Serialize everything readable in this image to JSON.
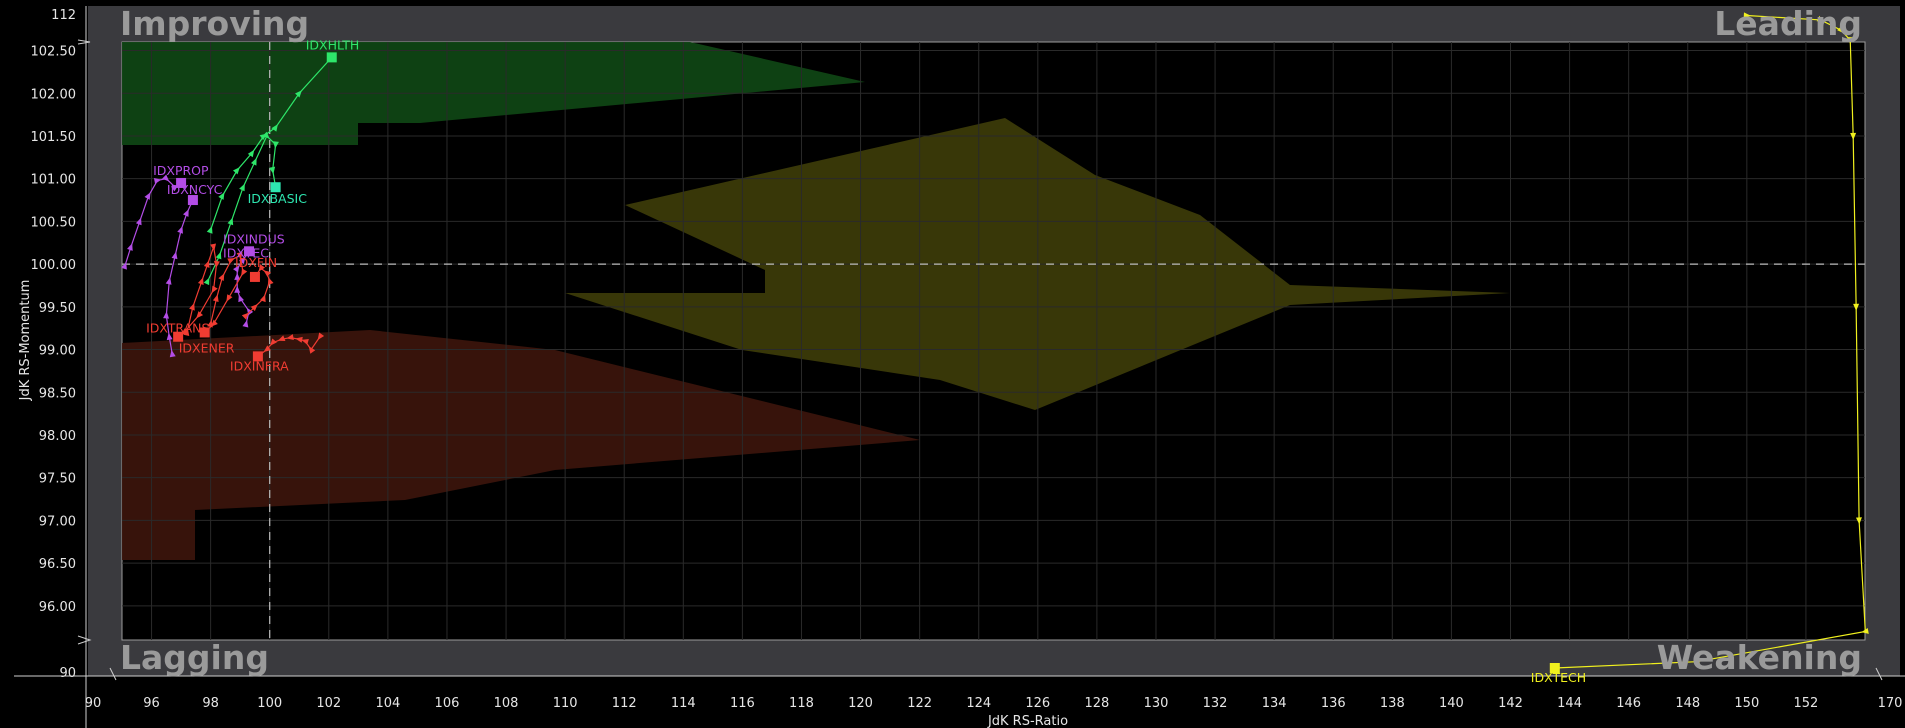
{
  "chart_data": {
    "type": "scatter",
    "title": "",
    "xlabel": "JdK RS-Ratio",
    "ylabel": "JdK RS-Momentum",
    "x_ticks": [
      "90",
      "96",
      "98",
      "100",
      "102",
      "104",
      "106",
      "108",
      "110",
      "112",
      "114",
      "116",
      "118",
      "120",
      "122",
      "124",
      "126",
      "128",
      "130",
      "132",
      "134",
      "136",
      "138",
      "140",
      "142",
      "144",
      "146",
      "148",
      "150",
      "152",
      "170"
    ],
    "y_ticks": [
      "112",
      "102.50",
      "102.00",
      "101.50",
      "101.00",
      "100.50",
      "100.00",
      "99.50",
      "99.00",
      "98.50",
      "98.00",
      "97.50",
      "97.00",
      "96.50",
      "96.00",
      "90"
    ],
    "xlim_inner": [
      95,
      154
    ],
    "ylim_inner": [
      95.6,
      102.6
    ],
    "x_break_labels": {
      "low": 90,
      "high": 170
    },
    "y_break_labels": {
      "low": 90,
      "high": 112
    },
    "center": [
      100,
      100
    ],
    "grid": true,
    "quadrants": {
      "top_left": "Improving",
      "top_right": "Leading",
      "bottom_left": "Lagging",
      "bottom_right": "Weakening"
    },
    "series": [
      {
        "name": "IDXHLTH",
        "color": "#2ee66a",
        "marker_color": "#2ee66a",
        "label_color": "#2ee66a",
        "x": [
          98.0,
          98.4,
          98.9,
          99.4,
          99.8,
          100.2,
          101.0,
          102.1
        ],
        "y": [
          100.4,
          100.8,
          101.1,
          101.3,
          101.5,
          101.6,
          102.0,
          102.42
        ]
      },
      {
        "name": "IDXBASIC",
        "color": "#2ee66a",
        "marker_color": "#2ee6b0",
        "label_color": "#2ee6b0",
        "x": [
          97.9,
          98.3,
          98.7,
          99.1,
          99.5,
          99.9,
          100.2,
          100.1,
          100.2
        ],
        "y": [
          99.8,
          100.1,
          100.5,
          100.9,
          101.2,
          101.5,
          101.4,
          101.1,
          100.9
        ]
      },
      {
        "name": "IDXPROP",
        "color": "#b34de6",
        "marker_color": "#b34de6",
        "label_color": "#b34de6",
        "x": [
          95.1,
          95.3,
          95.6,
          95.9,
          96.2,
          96.5,
          96.8,
          97.0
        ],
        "y": [
          99.98,
          100.2,
          100.5,
          100.8,
          100.98,
          101.0,
          100.9,
          100.95
        ]
      },
      {
        "name": "IDXNCYC",
        "color": "#b34de6",
        "marker_color": "#b34de6",
        "label_color": "#b34de6",
        "x": [
          96.7,
          96.6,
          96.5,
          96.6,
          96.8,
          97.0,
          97.2,
          97.4
        ],
        "y": [
          98.95,
          99.15,
          99.4,
          99.8,
          100.1,
          100.4,
          100.6,
          100.75
        ]
      },
      {
        "name": "IDXINDUS",
        "color": "#b34de6",
        "marker_color": "#b34de6",
        "label_color": "#b34de6",
        "x": [
          99.2,
          99.3,
          99.0,
          98.9,
          98.9,
          98.9,
          99.1,
          99.3
        ],
        "y": [
          99.3,
          99.45,
          99.6,
          99.7,
          99.85,
          99.95,
          100.05,
          100.15
        ]
      },
      {
        "name": "IDXTRANS",
        "color": "#f03c32",
        "marker_color": "#f03c32",
        "label_color": "#f03c32",
        "x": [
          97.2,
          97.4,
          97.7,
          97.9,
          98.1,
          98.2,
          98.1,
          97.6,
          97.1,
          96.9
        ],
        "y": [
          99.2,
          99.5,
          99.8,
          100.0,
          100.2,
          100.0,
          99.7,
          99.4,
          99.2,
          99.15
        ]
      },
      {
        "name": "IDXENER",
        "color": "#f03c32",
        "marker_color": "#f03c32",
        "label_color": "#f03c32",
        "x": [
          98.0,
          98.2,
          98.4,
          98.7,
          99.0,
          99.1,
          98.6,
          98.1,
          97.8
        ],
        "y": [
          99.3,
          99.6,
          99.85,
          100.05,
          100.1,
          99.9,
          99.6,
          99.3,
          99.2
        ]
      },
      {
        "name": "IDXFIN",
        "color": "#f03c32",
        "marker_color": "#f03c32",
        "label_color": "#f03c32",
        "x": [
          99.2,
          99.5,
          99.8,
          100.0,
          99.9,
          99.7,
          99.5
        ],
        "y": [
          99.4,
          99.5,
          99.6,
          99.8,
          99.9,
          99.95,
          99.85
        ]
      },
      {
        "name": "IDXTECH",
        "color": "#f0f01e",
        "marker_color": "#f0f01e",
        "label_color": "#f0f01e",
        "x": [
          150.0,
          152.5,
          153.2,
          153.5,
          153.6,
          153.7,
          153.8,
          154.2,
          148.3,
          143.5
        ],
        "y": [
          111.5,
          110.0,
          106.5,
          103.2,
          101.5,
          99.5,
          97.0,
          95.7,
          91.8,
          90.7
        ]
      },
      {
        "name": "IDXINFRA",
        "color": "#f03c32",
        "marker_color": "#f03c32",
        "label_color": "#f03c32",
        "x": [
          101.7,
          101.4,
          101.2,
          101.0,
          100.7,
          100.4,
          100.1,
          99.9,
          99.6
        ],
        "y": [
          99.15,
          99.0,
          99.1,
          99.12,
          99.14,
          99.12,
          99.08,
          99.0,
          98.92
        ]
      }
    ],
    "printed_series_labels": [
      {
        "series": "IDXHLTH",
        "text": "IDXHLTH"
      },
      {
        "series": "IDXBASIC",
        "text": "IDXBASIC"
      },
      {
        "series": "IDXPROP",
        "text": "IDXPROP"
      },
      {
        "series": "IDXNCYC",
        "text": "IDXNCYC"
      },
      {
        "series": "IDXINDUS",
        "text": "IDXINDUS"
      },
      {
        "series": "IDXINDUS",
        "text": "IDXTEC"
      },
      {
        "series": "IDXFIN",
        "text": "IDXFIN"
      },
      {
        "series": "IDXTRANS",
        "text": "IDXTRANS"
      },
      {
        "series": "IDXENER",
        "text": "IDXENER"
      },
      {
        "series": "IDXINFRA",
        "text": "IDXINFRA"
      },
      {
        "series": "IDXTECH",
        "text": "IDXTECH"
      }
    ]
  },
  "colors": {
    "background": "#000000",
    "border": "#3a3a3e",
    "grid": "#2a2a2a",
    "improving_zone": "#0f4414",
    "leading_zone": "#3b3a08",
    "lagging_zone": "#3a140c",
    "quadrant_text": "#9a9a9a",
    "axis_text": "#e6e6e6"
  }
}
